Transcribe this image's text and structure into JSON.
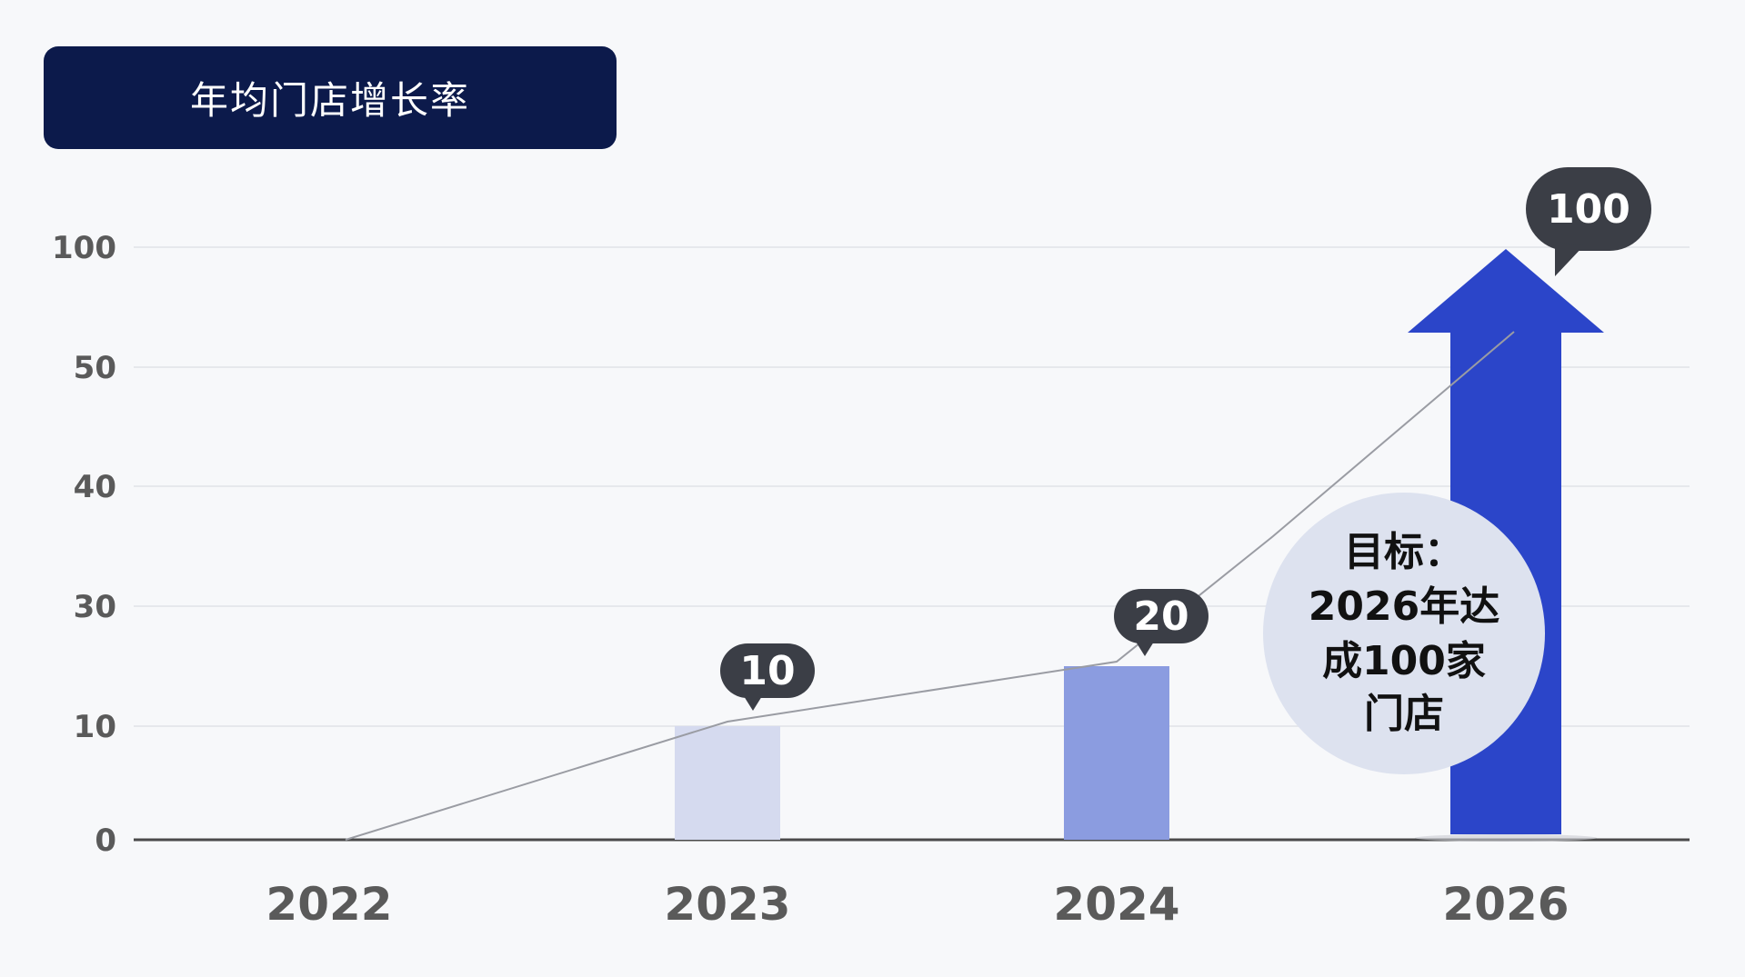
{
  "title": "年均门店增长率",
  "colors": {
    "title_bg": "#0c1a4b",
    "bar_2023": "#d5daef",
    "bar_2024": "#8b9ce0",
    "arrow_2026": "#2b45c9",
    "bubble": "#3b3e46",
    "callout_bg": "#dde2ef",
    "axis_text": "#5a5a5a"
  },
  "chart_data": {
    "type": "bar",
    "y_ticks": [
      "100",
      "50",
      "40",
      "30",
      "10",
      "0"
    ],
    "categories": [
      "2022",
      "2023",
      "2024",
      "2026"
    ],
    "values": [
      0,
      10,
      20,
      100
    ],
    "value_labels": [
      "",
      "10",
      "20",
      "100"
    ],
    "trend_line": true,
    "grid": true,
    "note": {
      "lines": [
        "目标：",
        "2026年达",
        "成100家",
        "门店"
      ]
    }
  }
}
